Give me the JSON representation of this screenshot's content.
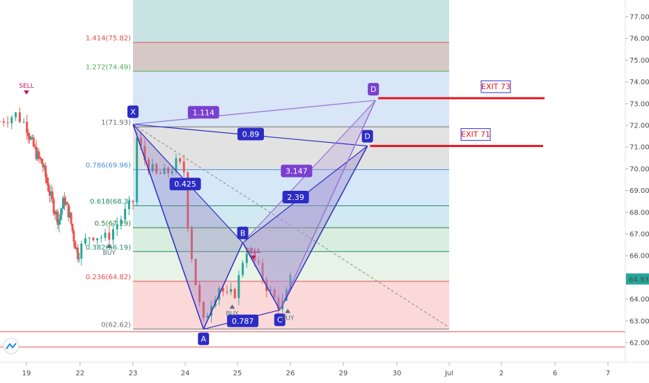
{
  "chart_data": {
    "type": "candlestick",
    "y_ticks": [
      "77.00",
      "76.00",
      "75.00",
      "74.00",
      "73.00",
      "72.00",
      "71.00",
      "70.00",
      "69.00",
      "68.00",
      "67.00",
      "66.00",
      "65.00",
      "64.00",
      "63.00",
      "62.00"
    ],
    "x_ticks": [
      "19",
      "22",
      "23",
      "24",
      "25",
      "26",
      "29",
      "30",
      "Jul",
      "2",
      "6",
      "7"
    ],
    "last_price": "64.93",
    "fib_levels": [
      {
        "label": "1.414(75.82)",
        "price": 75.82,
        "color": "#e74c4c"
      },
      {
        "label": "1.272(74.49)",
        "price": 74.49,
        "color": "#4caf50"
      },
      {
        "label": "1(71.93)",
        "price": 71.93,
        "color": "#707070"
      },
      {
        "label": "0.786(69.96)",
        "price": 69.96,
        "color": "#4a90d9"
      },
      {
        "label": "0.618(68.3)",
        "price": 68.3,
        "color": "#1f8a6a"
      },
      {
        "label": "0.5(67.29)",
        "price": 67.29,
        "color": "#2e7d32"
      },
      {
        "label": "0.382(66.19)",
        "price": 66.19,
        "color": "#1f8a6a"
      },
      {
        "label": "0.236(64.82)",
        "price": 64.82,
        "color": "#e74c4c"
      },
      {
        "label": "0(62.62)",
        "price": 62.62,
        "color": "#707070"
      }
    ],
    "pattern_points": [
      {
        "label": "X",
        "day": 23.0,
        "price": 72.05
      },
      {
        "label": "A",
        "day": 24.35,
        "price": 62.62
      },
      {
        "label": "B",
        "day": 25.1,
        "price": 66.6
      },
      {
        "label": "C",
        "day": 25.8,
        "price": 63.5
      },
      {
        "label": "D",
        "day": 29.6,
        "price": 73.15
      },
      {
        "label": "D",
        "day": 29.45,
        "price": 71.05
      }
    ],
    "ratios": [
      "1.114",
      "0.89",
      "0.425",
      "3.147",
      "2.39",
      "0.787"
    ],
    "signals": [
      {
        "label": "SELL",
        "day": 19.0,
        "price": 73.8,
        "color": "#c2185b"
      },
      {
        "label": "BUY",
        "day": 22.55,
        "price": 66.3,
        "color": "#546e7a"
      },
      {
        "label": "SELL",
        "day": 25.3,
        "price": 66.2,
        "color": "#c2185b"
      },
      {
        "label": "BUY",
        "day": 24.9,
        "price": 63.5,
        "color": "#546e7a"
      },
      {
        "label": "BUY",
        "day": 25.95,
        "price": 63.3,
        "color": "#546e7a"
      }
    ],
    "exits": [
      {
        "label": "EXIT 73",
        "price": 73.25
      },
      {
        "label": "EXIT 71",
        "price": 71.05
      }
    ],
    "colors": {
      "up": "#26a69a",
      "down": "#ef5350",
      "pattern_line": "#2c2cc4",
      "pattern_fill": "#8e7cc3",
      "exit_line": "#e0161e"
    }
  }
}
